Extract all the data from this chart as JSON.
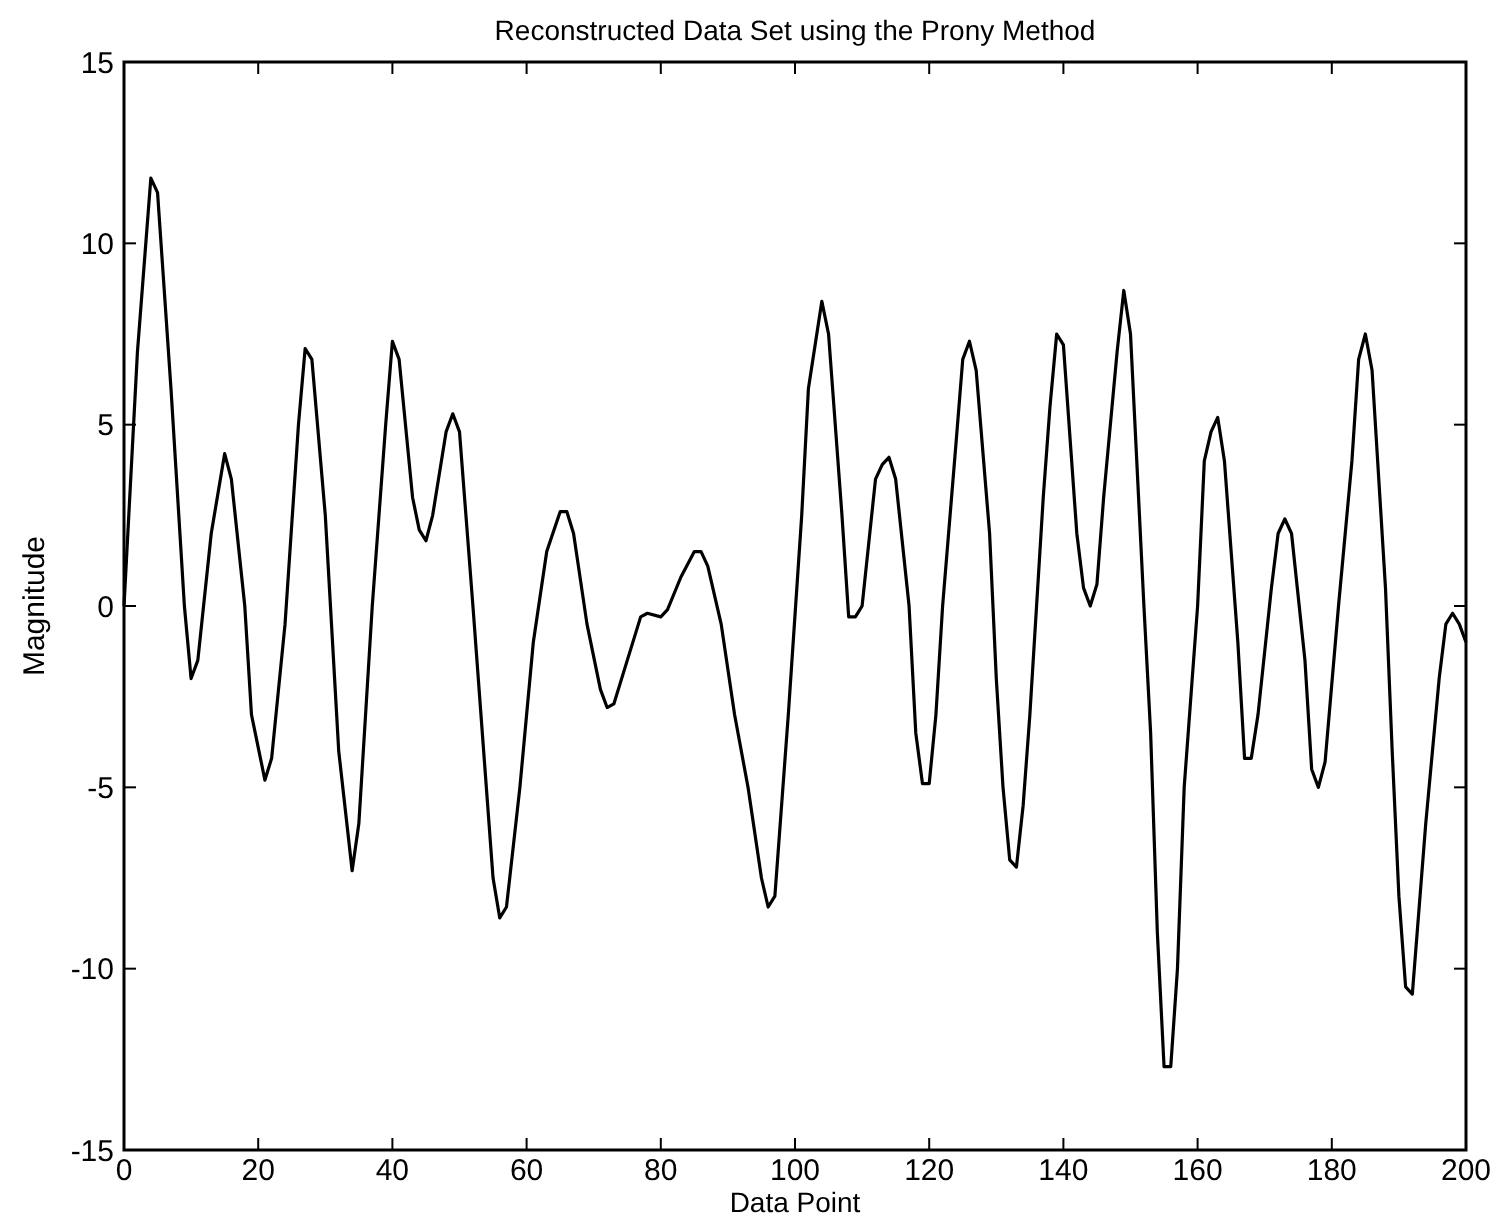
{
  "chart_data": {
    "type": "line",
    "title": "Reconstructed Data Set using the Prony Method",
    "xlabel": "Data Point",
    "ylabel": "Magnitude",
    "xlim": [
      0,
      200
    ],
    "ylim": [
      -15,
      15
    ],
    "xticks": [
      0,
      20,
      40,
      60,
      80,
      100,
      120,
      140,
      160,
      180,
      200
    ],
    "yticks": [
      -15,
      -10,
      -5,
      0,
      5,
      10,
      15
    ],
    "grid": false,
    "marker": "none",
    "line_style": "solid",
    "series": [
      {
        "color": "#000000",
        "x": [
          0,
          2,
          4,
          5,
          7,
          9,
          10,
          11,
          13,
          15,
          16,
          18,
          19,
          21,
          22,
          24,
          26,
          27,
          28,
          30,
          32,
          34,
          35,
          37,
          39,
          40,
          41,
          43,
          44,
          45,
          46,
          48,
          49,
          50,
          52,
          54,
          55,
          56,
          57,
          59,
          61,
          63,
          65,
          66,
          67,
          69,
          71,
          72,
          73,
          75,
          77,
          78,
          80,
          81,
          83,
          85,
          86,
          87,
          89,
          91,
          93,
          95,
          96,
          97,
          99,
          101,
          102,
          104,
          105,
          107,
          108,
          109,
          110,
          112,
          113,
          114,
          115,
          117,
          118,
          119,
          120,
          121,
          122,
          124,
          125,
          126,
          127,
          129,
          130,
          131,
          132,
          133,
          134,
          135,
          137,
          138,
          139,
          140,
          142,
          143,
          144,
          145,
          146,
          148,
          149,
          150,
          152,
          153,
          154,
          155,
          156,
          157,
          158,
          160,
          161,
          162,
          163,
          164,
          166,
          167,
          168,
          169,
          171,
          172,
          173,
          174,
          176,
          177,
          178,
          179,
          181,
          183,
          184,
          185,
          186,
          188,
          189,
          190,
          191,
          192,
          194,
          196,
          197,
          198,
          199,
          200
        ],
        "values": [
          0,
          7,
          11.8,
          11.4,
          6,
          0,
          -2,
          -1.5,
          2,
          4.2,
          3.5,
          0,
          -3,
          -4.8,
          -4.2,
          -0.5,
          5,
          7.1,
          6.8,
          2.5,
          -4,
          -7.3,
          -6,
          0,
          5,
          7.3,
          6.8,
          3,
          2.1,
          1.8,
          2.5,
          4.8,
          5.3,
          4.8,
          0,
          -5,
          -7.5,
          -8.6,
          -8.3,
          -5,
          -1,
          1.5,
          2.6,
          2.6,
          2,
          -0.5,
          -2.3,
          -2.8,
          -2.7,
          -1.5,
          -0.3,
          -0.2,
          -0.3,
          -0.1,
          0.8,
          1.5,
          1.5,
          1.1,
          -0.5,
          -3,
          -5,
          -7.5,
          -8.3,
          -8,
          -3,
          2.5,
          6,
          8.4,
          7.5,
          2.5,
          -0.3,
          -0.3,
          0,
          3.5,
          3.9,
          4.1,
          3.5,
          0,
          -3.5,
          -4.9,
          -4.9,
          -3,
          0,
          4.5,
          6.8,
          7.3,
          6.5,
          2,
          -2,
          -5,
          -7,
          -7.2,
          -5.5,
          -3,
          3,
          5.5,
          7.5,
          7.2,
          2,
          0.5,
          0,
          0.6,
          3,
          7,
          8.7,
          7.5,
          0,
          -3.5,
          -9,
          -12.7,
          -12.7,
          -10,
          -5,
          0,
          4,
          4.8,
          5.2,
          4,
          -1,
          -4.2,
          -4.2,
          -3,
          0.5,
          2,
          2.4,
          2,
          -1.5,
          -4.5,
          -5,
          -4.3,
          0,
          4,
          6.8,
          7.5,
          6.5,
          0.5,
          -4,
          -8,
          -10.5,
          -10.7,
          -6,
          -2,
          -0.5,
          -0.2,
          -0.5,
          -1
        ]
      }
    ]
  }
}
